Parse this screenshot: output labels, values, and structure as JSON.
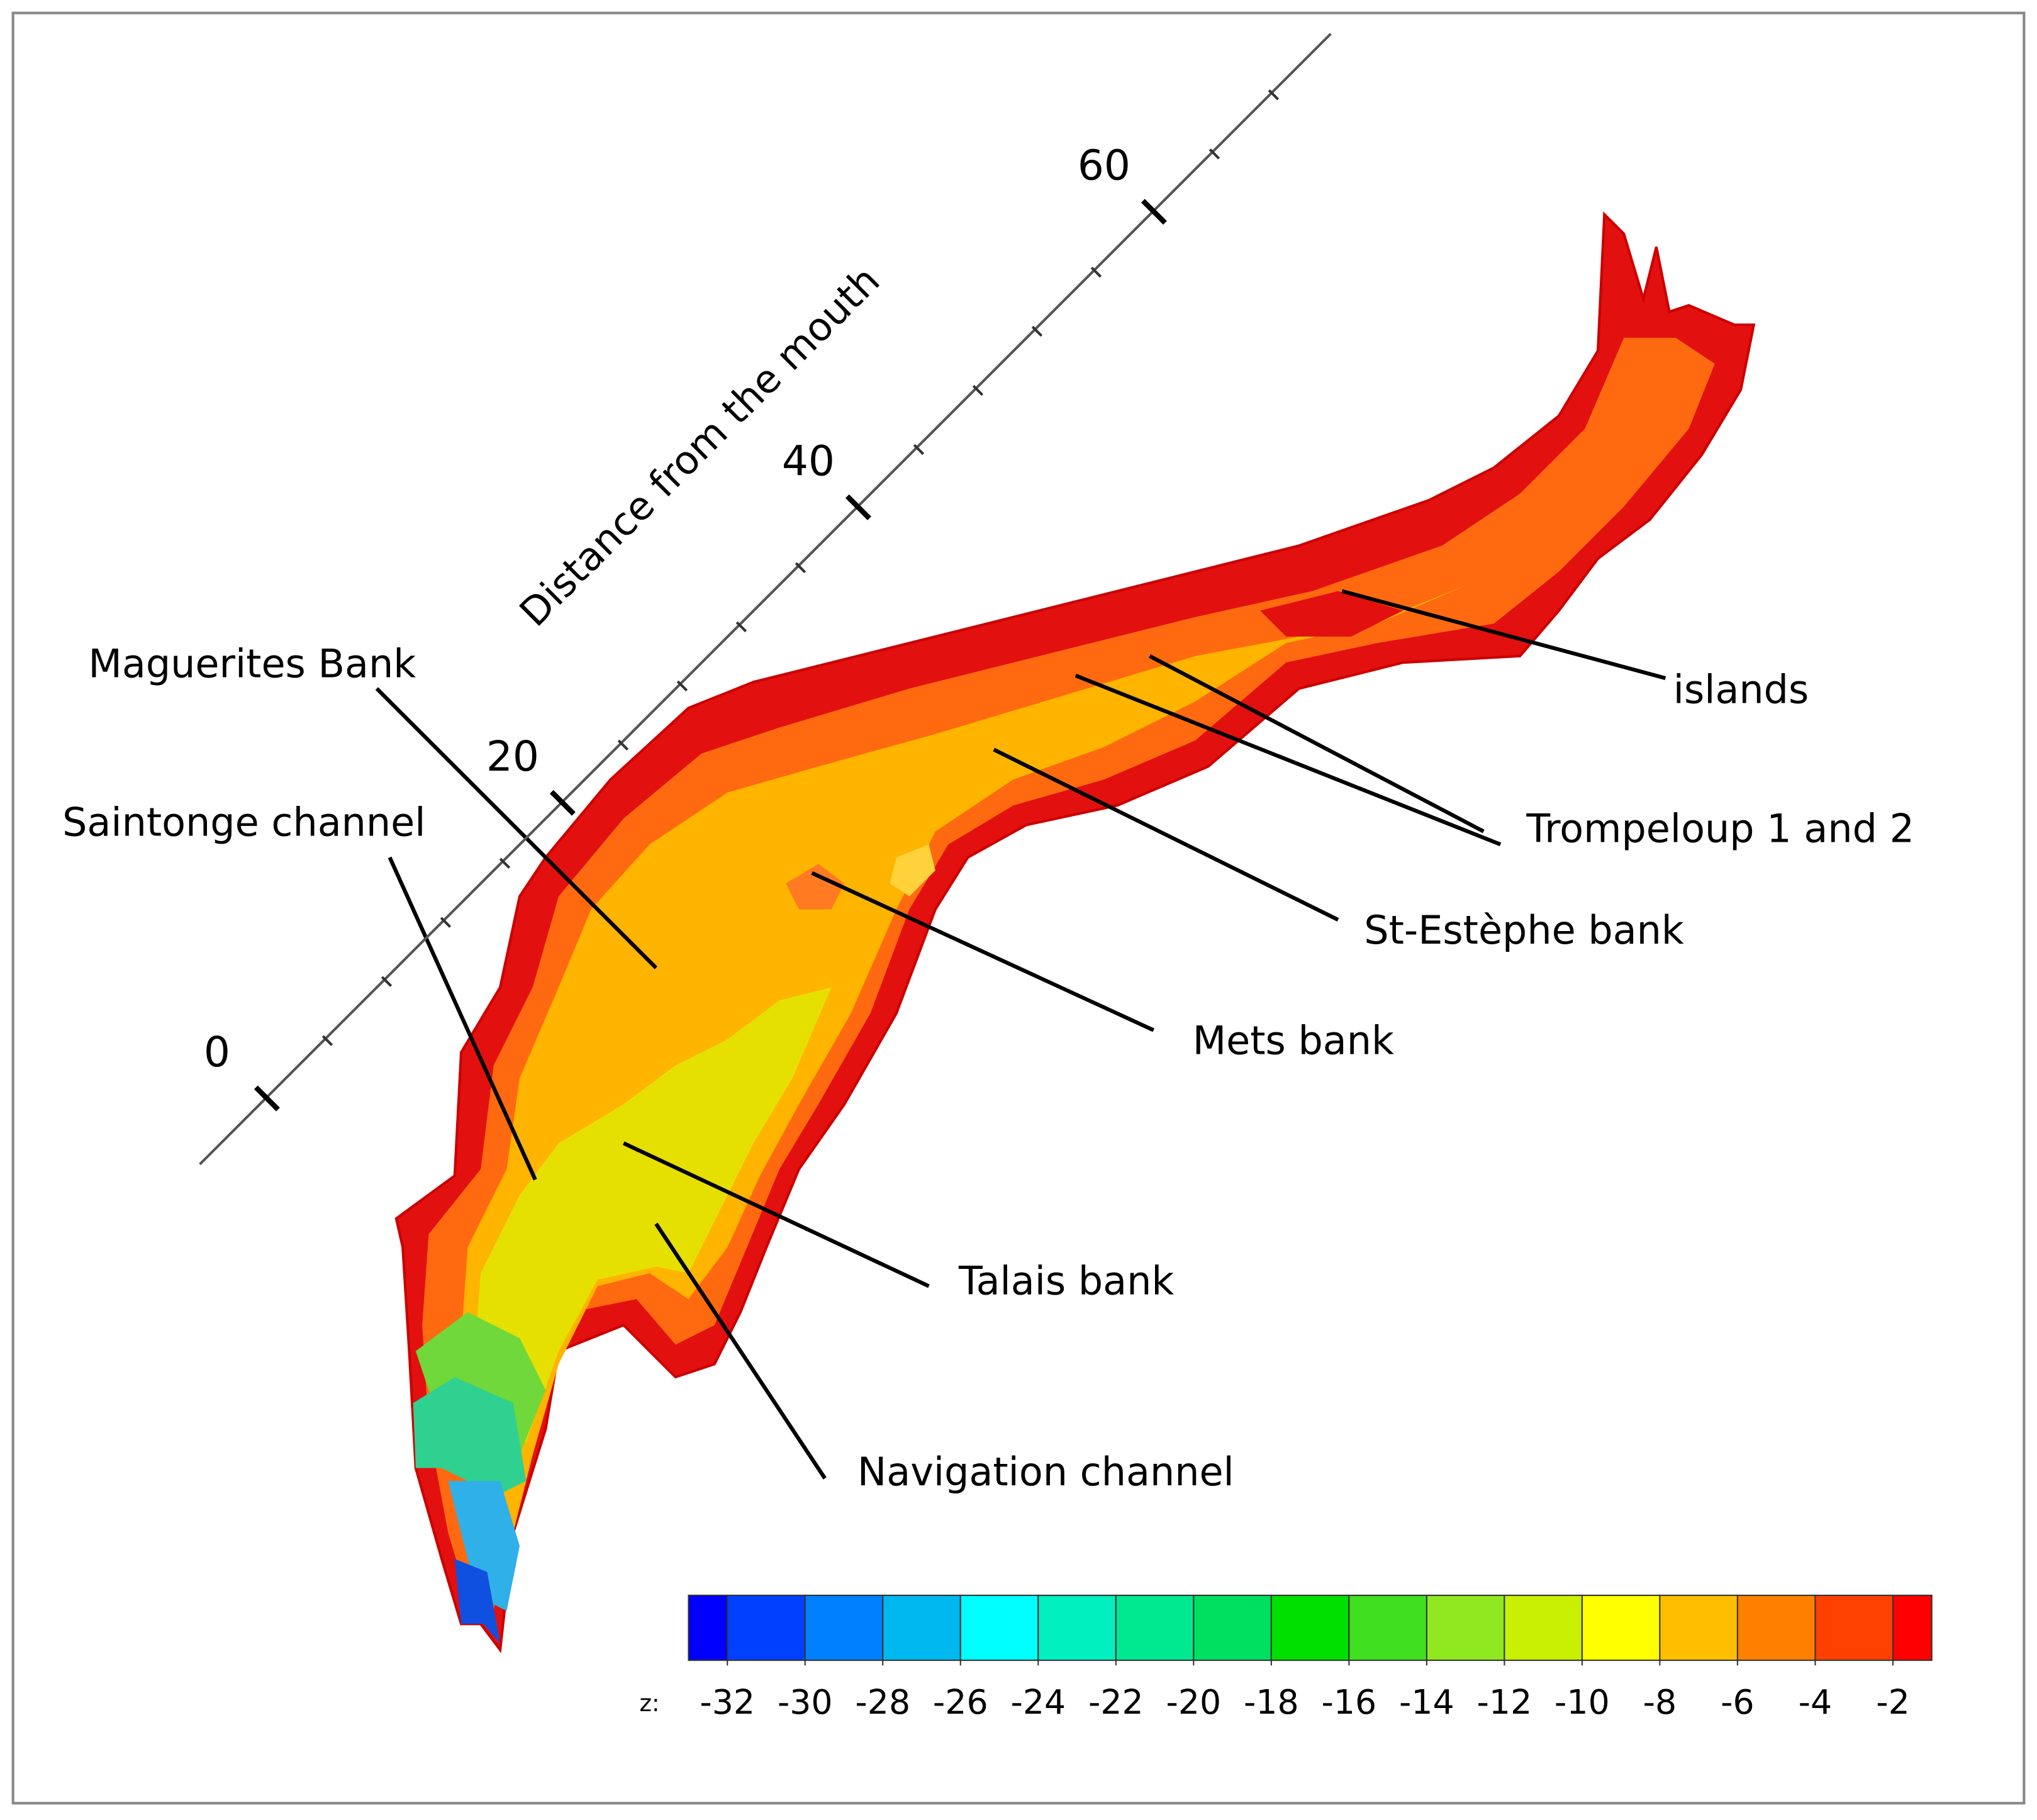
{
  "axis": {
    "title": "Distance from the mouth",
    "lim": [
      -4.5,
      72
    ],
    "ticks": [
      0,
      20,
      40,
      60
    ],
    "minor_ticks": [
      4,
      8,
      12,
      16,
      24,
      28,
      32,
      36,
      44,
      48,
      52,
      56,
      64,
      68
    ]
  },
  "annotations": [
    {
      "text": "Maguerites Bank"
    },
    {
      "text": "Saintonge channel"
    },
    {
      "text": "Talais bank"
    },
    {
      "text": "Navigation channel"
    },
    {
      "text": "Mets bank"
    },
    {
      "text": "St-Estèphe bank"
    },
    {
      "text": "Trompeloup 1 and 2"
    },
    {
      "text": "islands"
    }
  ],
  "colorbar": {
    "label": "z:",
    "lim": [
      -33,
      -1
    ],
    "ticks": [
      -32,
      -30,
      -28,
      -26,
      -24,
      -22,
      -20,
      -18,
      -16,
      -14,
      -12,
      -10,
      -8,
      -6,
      -4,
      -2
    ],
    "colors": [
      "#0000ff",
      "#0040ff",
      "#0080ff",
      "#00b8f0",
      "#00ffff",
      "#00f0c0",
      "#00e890",
      "#00e060",
      "#00e000",
      "#40e020",
      "#90e820",
      "#c8f000",
      "#ffff00",
      "#ffbf00",
      "#ff8000",
      "#ff4000",
      "#ff0000"
    ]
  }
}
